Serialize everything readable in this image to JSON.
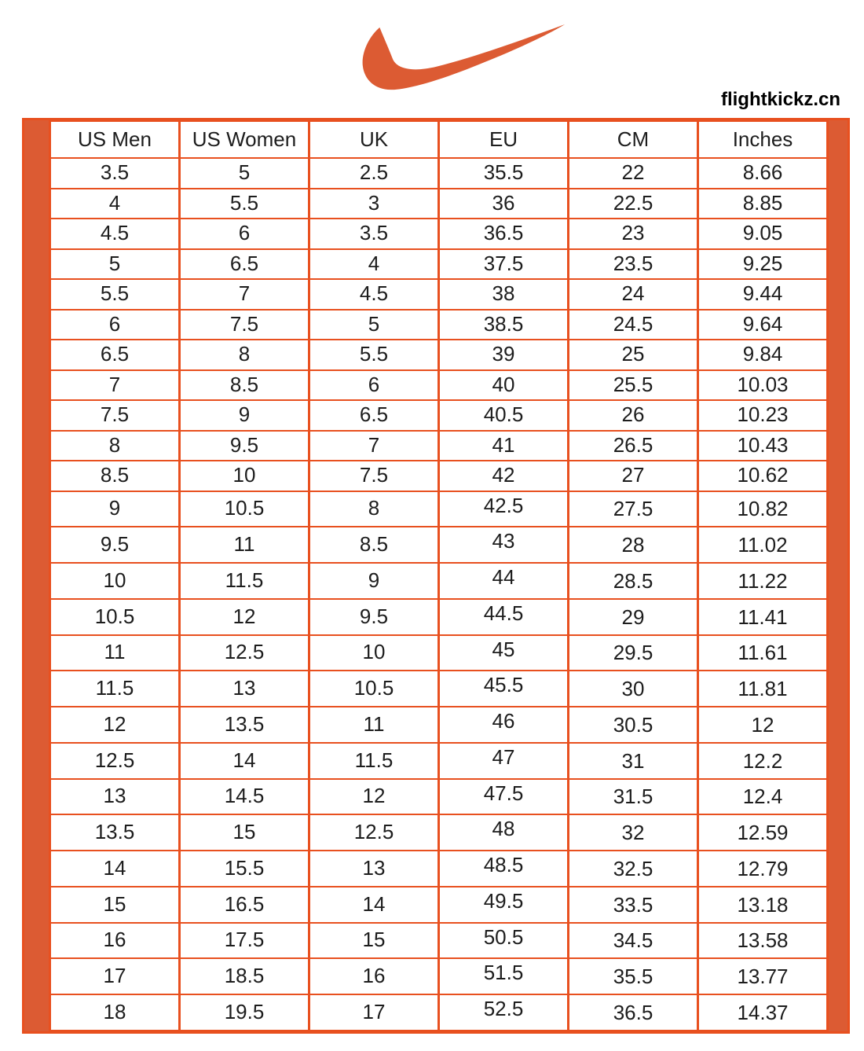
{
  "header": {
    "site_label": "flightkickz.cn",
    "logo": "nike-swoosh-icon"
  },
  "colors": {
    "accent_orange": "#DC5B33",
    "grid_orange": "#E8501F",
    "text": "#1D1D1D",
    "background": "#FFFFFF"
  },
  "chart_data": {
    "type": "table",
    "columns": [
      "US Men",
      "US Women",
      "UK",
      "EU",
      "CM",
      "Inches"
    ],
    "rows": [
      [
        "3.5",
        "5",
        "2.5",
        "35.5",
        "22",
        "8.66"
      ],
      [
        "4",
        "5.5",
        "3",
        "36",
        "22.5",
        "8.85"
      ],
      [
        "4.5",
        "6",
        "3.5",
        "36.5",
        "23",
        "9.05"
      ],
      [
        "5",
        "6.5",
        "4",
        "37.5",
        "23.5",
        "9.25"
      ],
      [
        "5.5",
        "7",
        "4.5",
        "38",
        "24",
        "9.44"
      ],
      [
        "6",
        "7.5",
        "5",
        "38.5",
        "24.5",
        "9.64"
      ],
      [
        "6.5",
        "8",
        "5.5",
        "39",
        "25",
        "9.84"
      ],
      [
        "7",
        "8.5",
        "6",
        "40",
        "25.5",
        "10.03"
      ],
      [
        "7.5",
        "9",
        "6.5",
        "40.5",
        "26",
        "10.23"
      ],
      [
        "8",
        "9.5",
        "7",
        "41",
        "26.5",
        "10.43"
      ],
      [
        "8.5",
        "10",
        "7.5",
        "42",
        "27",
        "10.62"
      ],
      [
        "9",
        "10.5",
        "8",
        "42.5",
        "27.5",
        "10.82"
      ],
      [
        "9.5",
        "11",
        "8.5",
        "43",
        "28",
        "11.02"
      ],
      [
        "10",
        "11.5",
        "9",
        "44",
        "28.5",
        "11.22"
      ],
      [
        "10.5",
        "12",
        "9.5",
        "44.5",
        "29",
        "11.41"
      ],
      [
        "11",
        "12.5",
        "10",
        "45",
        "29.5",
        "11.61"
      ],
      [
        "11.5",
        "13",
        "10.5",
        "45.5",
        "30",
        "11.81"
      ],
      [
        "12",
        "13.5",
        "11",
        "46",
        "30.5",
        "12"
      ],
      [
        "12.5",
        "14",
        "11.5",
        "47",
        "31",
        "12.2"
      ],
      [
        "13",
        "14.5",
        "12",
        "47.5",
        "31.5",
        "12.4"
      ],
      [
        "13.5",
        "15",
        "12.5",
        "48",
        "32",
        "12.59"
      ],
      [
        "14",
        "15.5",
        "13",
        "48.5",
        "32.5",
        "12.79"
      ],
      [
        "15",
        "16.5",
        "14",
        "49.5",
        "33.5",
        "13.18"
      ],
      [
        "16",
        "17.5",
        "15",
        "50.5",
        "34.5",
        "13.58"
      ],
      [
        "17",
        "18.5",
        "16",
        "51.5",
        "35.5",
        "13.77"
      ],
      [
        "18",
        "19.5",
        "17",
        "52.5",
        "36.5",
        "14.37"
      ]
    ]
  }
}
